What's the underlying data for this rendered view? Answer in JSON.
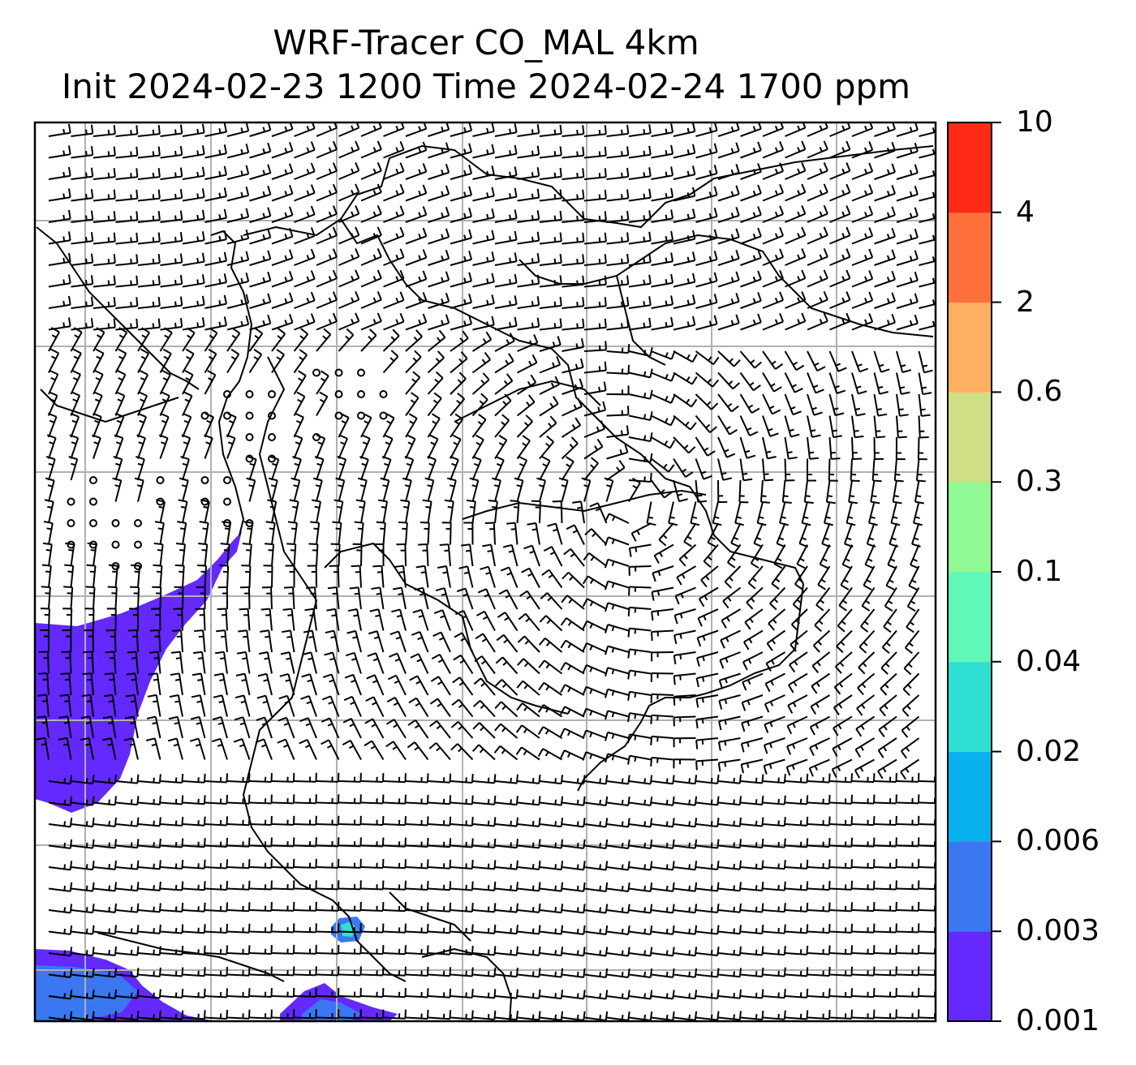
{
  "title": {
    "line1": "WRF-Tracer CO_MAL 4km",
    "line2": "Init 2024-02-23 1200 Time 2024-02-24 1700 ppm"
  },
  "colorbar": {
    "levels": [
      {
        "label": "0.001",
        "color": "#6329ff"
      },
      {
        "label": "0.003",
        "color": "#3a77f1"
      },
      {
        "label": "0.006",
        "color": "#08b1ee"
      },
      {
        "label": "0.02",
        "color": "#2edfd2"
      },
      {
        "label": "0.04",
        "color": "#60f8b9"
      },
      {
        "label": "0.1",
        "color": "#91f994"
      },
      {
        "label": "0.3",
        "color": "#cfdf85"
      },
      {
        "label": "0.6",
        "color": "#ffb061"
      },
      {
        "label": "2",
        "color": "#ff703b"
      },
      {
        "label": "4",
        "color": "#ff2b17"
      },
      {
        "label": "10",
        "color": null
      }
    ]
  },
  "map": {
    "gridlines": true,
    "wind_barbs": true,
    "coastlines_and_borders": true,
    "colors": {
      "grid": "#b0b0b0",
      "lines": "#000000",
      "plume_low": "#6329ff",
      "plume_mid": "#3a77f1",
      "plume_high": "#2edfd2"
    }
  }
}
